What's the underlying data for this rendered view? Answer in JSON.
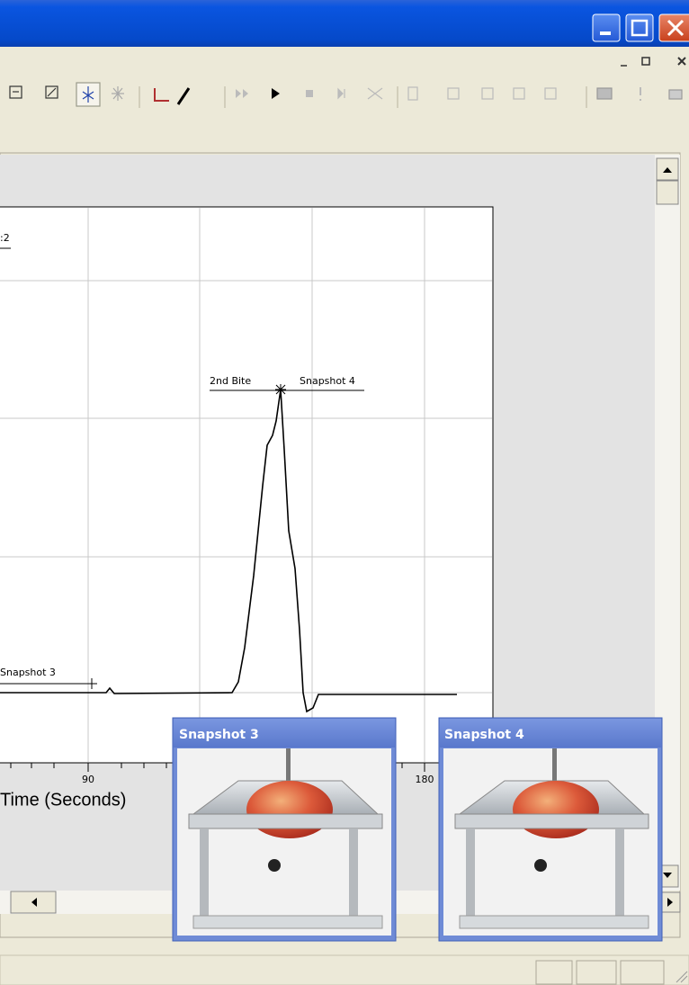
{
  "chart": {
    "legend_fragment": ":2",
    "annotations": [
      {
        "label": "2nd Bite"
      },
      {
        "label": "Snapshot 4"
      },
      {
        "label": "Snapshot 3"
      }
    ],
    "x_tick_labels": [
      "90",
      "180"
    ],
    "x_label": "Time (Seconds)"
  },
  "snapshots": [
    {
      "title": "Snapshot 3"
    },
    {
      "title": "Snapshot 4"
    }
  ]
}
